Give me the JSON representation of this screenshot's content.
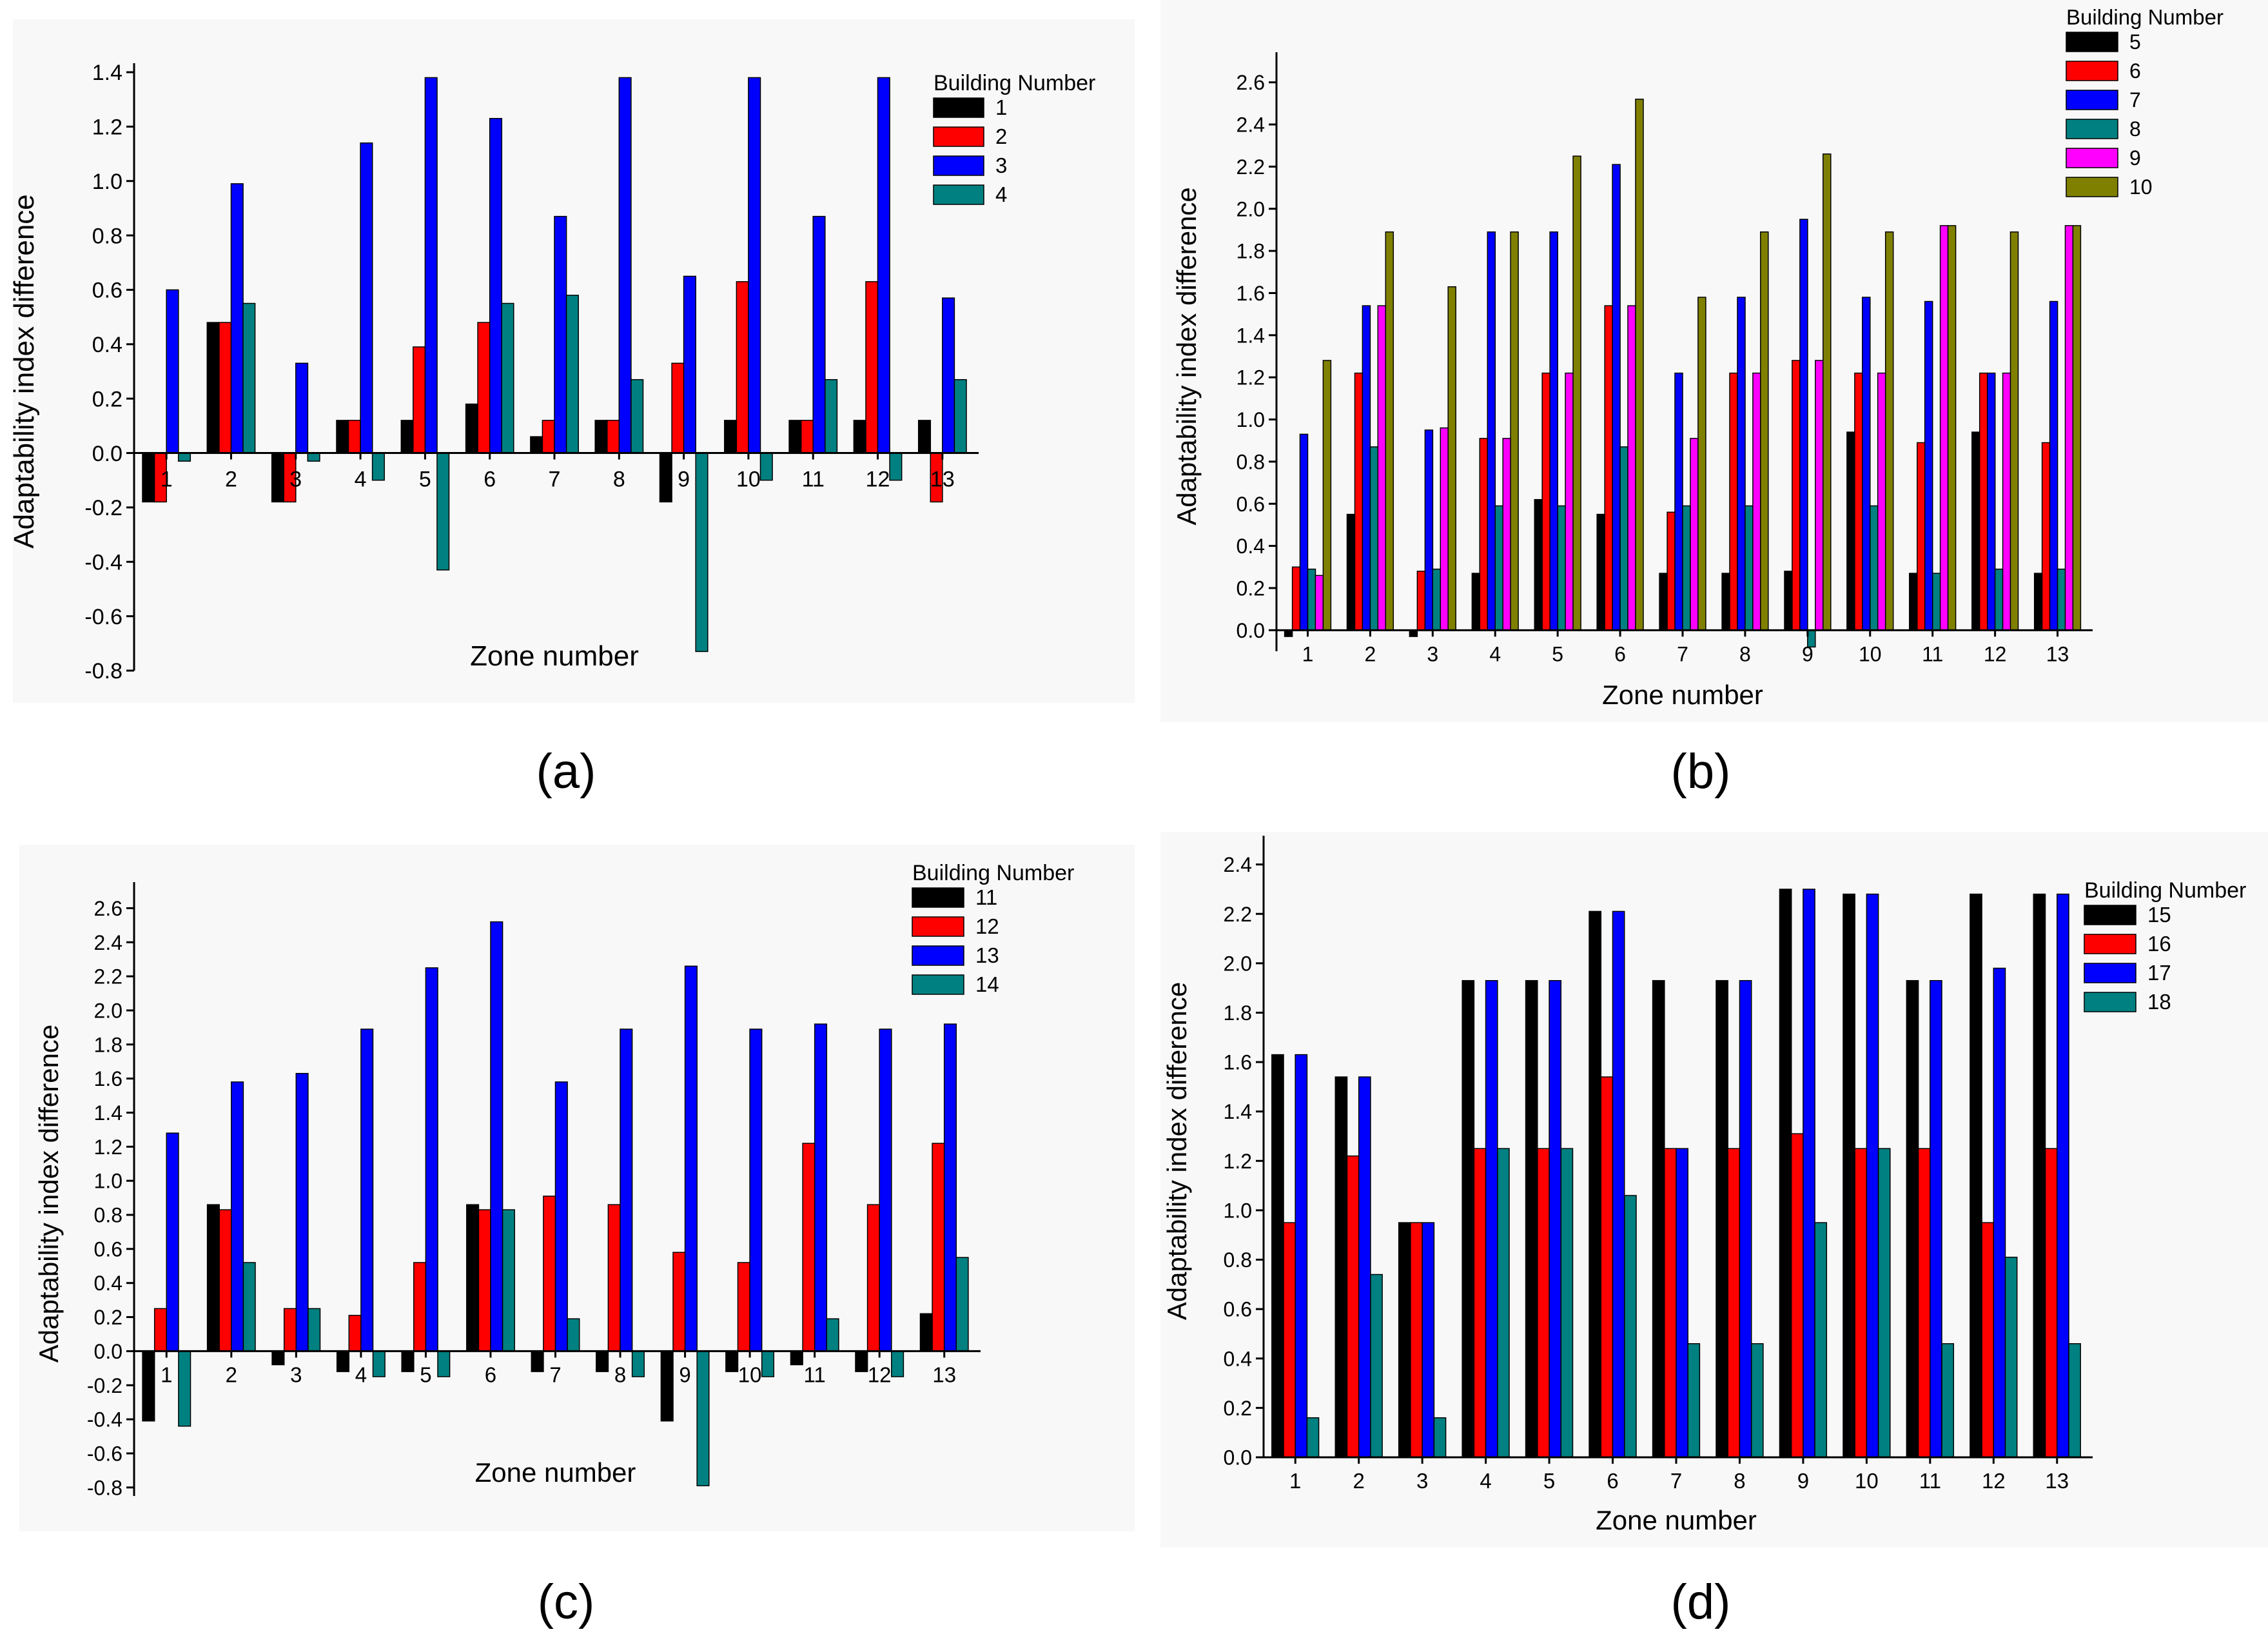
{
  "figure": {
    "panels": [
      {
        "caption": "(a)",
        "legend_title": "Building Number"
      },
      {
        "caption": "(b)",
        "legend_title": "Building Number"
      },
      {
        "caption": "(c)",
        "legend_title": "Building Number"
      },
      {
        "caption": "(d)",
        "legend_title": "Building Number"
      }
    ]
  },
  "chart_data": [
    {
      "panel": "a",
      "type": "bar",
      "xlabel": "Zone number",
      "ylabel": "Adaptability index difference",
      "categories": [
        "1",
        "2",
        "3",
        "4",
        "5",
        "6",
        "7",
        "8",
        "9",
        "10",
        "11",
        "12",
        "13"
      ],
      "ylim": [
        -0.8,
        1.4
      ],
      "yticks": [
        -0.8,
        -0.6,
        -0.4,
        -0.2,
        0.0,
        0.2,
        0.4,
        0.6,
        0.8,
        1.0,
        1.2,
        1.4
      ],
      "tick_decimals": 1,
      "zero_label_position": "inside-axis",
      "legend_title": "Building Number",
      "legend_position": "top-right",
      "series": [
        {
          "name": "1",
          "color": "#000000",
          "values": [
            -0.18,
            0.48,
            -0.18,
            0.12,
            0.12,
            0.18,
            0.06,
            0.12,
            -0.18,
            0.12,
            0.12,
            0.12,
            0.12
          ]
        },
        {
          "name": "2",
          "color": "#ff0000",
          "values": [
            -0.18,
            0.48,
            -0.18,
            0.12,
            0.39,
            0.48,
            0.12,
            0.12,
            0.33,
            0.63,
            0.12,
            0.63,
            -0.18
          ]
        },
        {
          "name": "3",
          "color": "#0000ff",
          "values": [
            0.6,
            0.99,
            0.33,
            1.14,
            1.38,
            1.23,
            0.87,
            1.38,
            0.65,
            1.38,
            0.87,
            1.38,
            0.57
          ]
        },
        {
          "name": "4",
          "color": "#008080",
          "values": [
            -0.03,
            0.55,
            -0.03,
            -0.1,
            -0.43,
            0.55,
            0.58,
            0.27,
            -0.73,
            -0.1,
            0.27,
            -0.1,
            0.27
          ]
        }
      ]
    },
    {
      "panel": "b",
      "type": "bar",
      "xlabel": "Zone number",
      "ylabel": "Adaptability index difference",
      "categories": [
        "1",
        "2",
        "3",
        "4",
        "5",
        "6",
        "7",
        "8",
        "9",
        "10",
        "11",
        "12",
        "13"
      ],
      "ylim": [
        -0.1,
        2.7
      ],
      "yticks": [
        0.0,
        0.2,
        0.4,
        0.6,
        0.8,
        1.0,
        1.2,
        1.4,
        1.6,
        1.8,
        2.0,
        2.2,
        2.4,
        2.6
      ],
      "tick_decimals": 1,
      "zero_label_position": "outside-axis",
      "legend_title": "Building Number",
      "legend_position": "top-right",
      "series": [
        {
          "name": "5",
          "color": "#000000",
          "values": [
            -0.03,
            0.55,
            -0.03,
            0.27,
            0.62,
            0.55,
            0.27,
            0.27,
            0.28,
            0.94,
            0.27,
            0.94,
            0.27
          ]
        },
        {
          "name": "6",
          "color": "#ff0000",
          "values": [
            0.3,
            1.22,
            0.28,
            0.91,
            1.22,
            1.54,
            0.56,
            1.22,
            1.28,
            1.22,
            0.89,
            1.22,
            0.89
          ]
        },
        {
          "name": "7",
          "color": "#0000ff",
          "values": [
            0.93,
            1.54,
            0.95,
            1.89,
            1.89,
            2.21,
            1.22,
            1.58,
            1.95,
            1.58,
            1.56,
            1.22,
            1.56
          ]
        },
        {
          "name": "8",
          "color": "#008080",
          "values": [
            0.29,
            0.87,
            0.29,
            0.59,
            0.59,
            0.87,
            0.59,
            0.59,
            -0.08,
            0.59,
            0.27,
            0.29,
            0.29
          ]
        },
        {
          "name": "9",
          "color": "#ff00ff",
          "values": [
            0.26,
            1.54,
            0.96,
            0.91,
            1.22,
            1.54,
            0.91,
            1.22,
            1.28,
            1.22,
            1.92,
            1.22,
            1.92
          ]
        },
        {
          "name": "10",
          "color": "#808000",
          "values": [
            1.28,
            1.89,
            1.63,
            1.89,
            2.25,
            2.52,
            1.58,
            1.89,
            2.26,
            1.89,
            1.92,
            1.89,
            1.92
          ]
        }
      ]
    },
    {
      "panel": "c",
      "type": "bar",
      "xlabel": "Zone number",
      "ylabel": "Adaptability index difference",
      "categories": [
        "1",
        "2",
        "3",
        "4",
        "5",
        "6",
        "7",
        "8",
        "9",
        "10",
        "11",
        "12",
        "13"
      ],
      "ylim": [
        -0.85,
        2.7
      ],
      "yticks": [
        -0.8,
        -0.6,
        -0.4,
        -0.2,
        0.0,
        0.2,
        0.4,
        0.6,
        0.8,
        1.0,
        1.2,
        1.4,
        1.6,
        1.8,
        2.0,
        2.2,
        2.4,
        2.6
      ],
      "tick_decimals": 1,
      "zero_label_position": "outside-axis",
      "legend_title": "Building Number",
      "legend_position": "top-right",
      "series": [
        {
          "name": "11",
          "color": "#000000",
          "values": [
            -0.41,
            0.86,
            -0.08,
            -0.12,
            -0.12,
            0.86,
            -0.12,
            -0.12,
            -0.41,
            -0.12,
            -0.08,
            -0.12,
            0.22
          ]
        },
        {
          "name": "12",
          "color": "#ff0000",
          "values": [
            0.25,
            0.83,
            0.25,
            0.21,
            0.52,
            0.83,
            0.91,
            0.86,
            0.58,
            0.52,
            1.22,
            0.86,
            1.22
          ]
        },
        {
          "name": "13",
          "color": "#0000ff",
          "values": [
            1.28,
            1.58,
            1.63,
            1.89,
            2.25,
            2.52,
            1.58,
            1.89,
            2.26,
            1.89,
            1.92,
            1.89,
            1.92
          ]
        },
        {
          "name": "14",
          "color": "#008080",
          "values": [
            -0.44,
            0.52,
            0.25,
            -0.15,
            -0.15,
            0.83,
            0.19,
            -0.15,
            -0.79,
            -0.15,
            0.19,
            -0.15,
            0.55
          ]
        }
      ]
    },
    {
      "panel": "d",
      "type": "bar",
      "xlabel": "Zone number",
      "ylabel": "Adaptability index difference",
      "categories": [
        "1",
        "2",
        "3",
        "4",
        "5",
        "6",
        "7",
        "8",
        "9",
        "10",
        "11",
        "12",
        "13"
      ],
      "ylim": [
        0.0,
        2.48
      ],
      "yticks": [
        0.0,
        0.2,
        0.4,
        0.6,
        0.8,
        1.0,
        1.2,
        1.4,
        1.6,
        1.8,
        2.0,
        2.2,
        2.4
      ],
      "tick_decimals": 1,
      "zero_label_position": "outside-axis",
      "legend_title": "Building Number",
      "legend_position": "top-right",
      "series": [
        {
          "name": "15",
          "color": "#000000",
          "values": [
            1.63,
            1.54,
            0.95,
            1.93,
            1.93,
            2.21,
            1.93,
            1.93,
            2.3,
            2.28,
            1.93,
            2.28,
            2.28
          ]
        },
        {
          "name": "16",
          "color": "#ff0000",
          "values": [
            0.95,
            1.22,
            0.95,
            1.25,
            1.25,
            1.54,
            1.25,
            1.25,
            1.31,
            1.25,
            1.25,
            0.95,
            1.25
          ]
        },
        {
          "name": "17",
          "color": "#0000ff",
          "values": [
            1.63,
            1.54,
            0.95,
            1.93,
            1.93,
            2.21,
            1.25,
            1.93,
            2.3,
            2.28,
            1.93,
            1.98,
            2.28
          ]
        },
        {
          "name": "18",
          "color": "#008080",
          "values": [
            0.16,
            0.74,
            0.16,
            1.25,
            1.25,
            1.06,
            0.46,
            0.46,
            0.95,
            1.25,
            0.46,
            0.81,
            0.46
          ]
        }
      ]
    }
  ]
}
